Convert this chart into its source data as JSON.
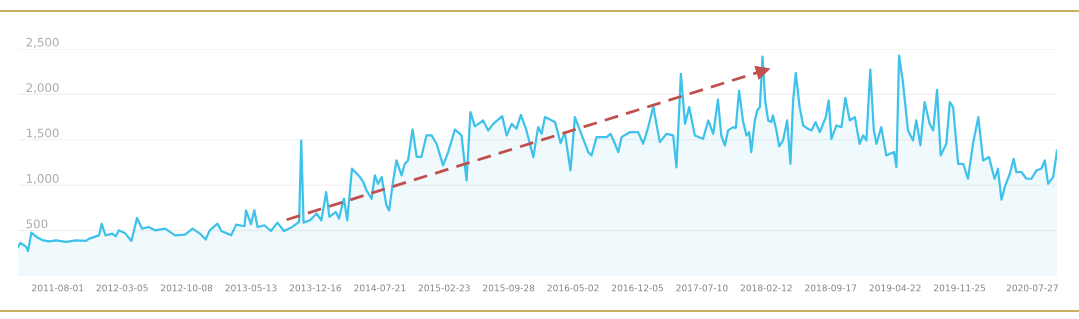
{
  "chart_data": {
    "type": "area",
    "xlim": [
      "2011-03-20",
      "2020-10-18"
    ],
    "ylim": [
      0,
      2500
    ],
    "xticks": [
      "2011-08-01",
      "2012-03-05",
      "2012-10-08",
      "2013-05-13",
      "2013-12-16",
      "2014-07-21",
      "2015-02-23",
      "2015-09-28",
      "2016-05-02",
      "2016-12-05",
      "2017-07-10",
      "2018-02-12",
      "2018-09-17",
      "2019-04-22",
      "2019-11-25",
      "2020-07-27"
    ],
    "yticks": [
      {
        "value": 500,
        "label": "500"
      },
      {
        "value": 1000,
        "label": "1,000"
      },
      {
        "value": 1500,
        "label": "1,500"
      },
      {
        "value": 2000,
        "label": "2,000"
      },
      {
        "value": 2500,
        "label": "2,500"
      }
    ],
    "grid": "y",
    "legend": false,
    "series": [
      {
        "color": "#3ec1ea",
        "x": [
          "2011-03-20",
          "2011-03-28",
          "2011-04-17",
          "2011-04-23",
          "2011-05-04",
          "2011-05-21",
          "2011-06-12",
          "2011-07-04",
          "2011-07-26",
          "2011-08-29",
          "2011-10-01",
          "2011-11-04",
          "2011-11-15",
          "2011-12-18",
          "2011-12-27",
          "2012-01-09",
          "2012-02-01",
          "2012-02-12",
          "2012-02-23",
          "2012-03-16",
          "2012-04-05",
          "2012-04-24",
          "2012-05-11",
          "2012-06-02",
          "2012-06-24",
          "2012-07-28",
          "2012-08-30",
          "2012-10-03",
          "2012-10-28",
          "2012-11-22",
          "2012-12-11",
          "2012-12-25",
          "2013-01-20",
          "2013-02-02",
          "2013-03-07",
          "2013-03-24",
          "2013-04-21",
          "2013-04-26",
          "2013-05-13",
          "2013-05-24",
          "2013-06-04",
          "2013-06-27",
          "2013-07-19",
          "2013-08-10",
          "2013-09-01",
          "2013-09-29",
          "2013-10-22",
          "2013-10-29",
          "2013-11-06",
          "2013-11-28",
          "2013-12-20",
          "2014-01-05",
          "2014-01-21",
          "2014-02-01",
          "2014-02-23",
          "2014-03-05",
          "2014-03-22",
          "2014-04-02",
          "2014-04-18",
          "2014-05-15",
          "2014-05-26",
          "2014-06-06",
          "2014-06-23",
          "2014-07-04",
          "2014-07-15",
          "2014-07-27",
          "2014-08-12",
          "2014-08-21",
          "2014-09-04",
          "2014-09-15",
          "2014-10-02",
          "2014-10-13",
          "2014-10-24",
          "2014-11-08",
          "2014-11-22",
          "2014-12-08",
          "2014-12-25",
          "2015-01-11",
          "2015-01-28",
          "2015-02-19",
          "2015-03-08",
          "2015-03-31",
          "2015-04-22",
          "2015-05-09",
          "2015-05-22",
          "2015-06-06",
          "2015-07-04",
          "2015-07-21",
          "2015-08-07",
          "2015-09-06",
          "2015-09-21",
          "2015-10-08",
          "2015-10-24",
          "2015-11-08",
          "2015-11-27",
          "2015-12-20",
          "2016-01-05",
          "2016-01-17",
          "2016-01-28",
          "2016-03-02",
          "2016-03-21",
          "2016-04-04",
          "2016-04-23",
          "2016-05-08",
          "2016-05-25",
          "2016-06-22",
          "2016-07-03",
          "2016-07-20",
          "2016-08-23",
          "2016-09-05",
          "2016-09-20",
          "2016-10-01",
          "2016-10-12",
          "2016-11-09",
          "2016-12-07",
          "2016-12-24",
          "2017-01-10",
          "2017-01-27",
          "2017-02-18",
          "2017-03-13",
          "2017-04-04",
          "2017-04-15",
          "2017-04-30",
          "2017-05-14",
          "2017-05-28",
          "2017-06-16",
          "2017-07-14",
          "2017-07-31",
          "2017-08-17",
          "2017-09-02",
          "2017-09-13",
          "2017-09-25",
          "2017-10-06",
          "2017-10-23",
          "2017-11-01",
          "2017-11-12",
          "2017-11-25",
          "2017-12-07",
          "2017-12-16",
          "2017-12-23",
          "2018-01-04",
          "2018-01-12",
          "2018-01-21",
          "2018-01-30",
          "2018-02-08",
          "2018-02-18",
          "2018-03-01",
          "2018-03-06",
          "2018-03-18",
          "2018-03-27",
          "2018-04-09",
          "2018-04-23",
          "2018-05-04",
          "2018-05-13",
          "2018-05-22",
          "2018-06-04",
          "2018-06-16",
          "2018-07-02",
          "2018-07-14",
          "2018-07-28",
          "2018-08-11",
          "2018-08-31",
          "2018-09-10",
          "2018-09-19",
          "2018-10-06",
          "2018-10-23",
          "2018-11-05",
          "2018-11-20",
          "2018-12-07",
          "2018-12-23",
          "2019-01-04",
          "2019-01-15",
          "2019-01-28",
          "2019-02-09",
          "2019-02-18",
          "2019-03-06",
          "2019-03-23",
          "2019-04-18",
          "2019-04-26",
          "2019-05-05",
          "2019-05-18",
          "2019-06-04",
          "2019-06-21",
          "2019-07-02",
          "2019-07-16",
          "2019-07-30",
          "2019-08-16",
          "2019-08-28",
          "2019-09-10",
          "2019-09-22",
          "2019-10-11",
          "2019-10-23",
          "2019-11-03",
          "2019-11-20",
          "2019-12-07",
          "2019-12-23",
          "2020-01-09",
          "2020-01-27",
          "2020-02-12",
          "2020-03-03",
          "2020-03-17",
          "2020-03-22",
          "2020-04-02",
          "2020-04-14",
          "2020-04-25",
          "2020-05-12",
          "2020-05-25",
          "2020-06-03",
          "2020-06-20",
          "2020-07-07",
          "2020-07-24",
          "2020-08-10",
          "2020-08-26",
          "2020-09-07",
          "2020-09-18",
          "2020-10-05",
          "2020-10-18"
        ],
        "values": [
          320,
          363,
          320,
          275,
          478,
          430,
          393,
          382,
          393,
          375,
          393,
          386,
          412,
          448,
          575,
          448,
          467,
          437,
          503,
          467,
          386,
          639,
          522,
          540,
          503,
          522,
          448,
          456,
          522,
          467,
          401,
          503,
          577,
          496,
          448,
          566,
          548,
          724,
          570,
          724,
          540,
          559,
          496,
          588,
          496,
          540,
          595,
          1490,
          588,
          614,
          688,
          614,
          923,
          651,
          706,
          632,
          853,
          614,
          1184,
          1090,
          1035,
          943,
          851,
          1108,
          1016,
          1090,
          778,
          722,
          1053,
          1273,
          1108,
          1236,
          1273,
          1614,
          1313,
          1313,
          1548,
          1548,
          1456,
          1218,
          1364,
          1614,
          1548,
          1053,
          1805,
          1647,
          1713,
          1603,
          1676,
          1761,
          1548,
          1676,
          1621,
          1775,
          1603,
          1309,
          1640,
          1566,
          1750,
          1695,
          1463,
          1584,
          1163,
          1750,
          1603,
          1364,
          1327,
          1529,
          1529,
          1566,
          1456,
          1364,
          1529,
          1584,
          1584,
          1456,
          1640,
          1867,
          1474,
          1566,
          1548,
          1195,
          2226,
          1676,
          1860,
          1548,
          1511,
          1713,
          1566,
          1944,
          1548,
          1438,
          1603,
          1640,
          1632,
          2043,
          1713,
          1548,
          1585,
          1365,
          1713,
          1823,
          1860,
          2417,
          1933,
          1713,
          1695,
          1768,
          1603,
          1427,
          1493,
          1713,
          1236,
          1933,
          2234,
          1860,
          1658,
          1621,
          1603,
          1695,
          1585,
          1750,
          1933,
          1511,
          1658,
          1640,
          1962,
          1713,
          1750,
          1456,
          1548,
          1493,
          2274,
          1603,
          1456,
          1640,
          1328,
          1365,
          1199,
          2428,
          2135,
          1603,
          1493,
          1713,
          1438,
          1915,
          1676,
          1603,
          2050,
          1328,
          1456,
          1915,
          1860,
          1236,
          1236,
          1071,
          1456,
          1750,
          1273,
          1310,
          1126,
          1071,
          1181,
          840,
          979,
          1126,
          1291,
          1145,
          1145,
          1071,
          1071,
          1163,
          1181,
          1273,
          1016,
          1089,
          1383
        ]
      },
      {
        "type": "line",
        "color": "#c0504d",
        "line_style": "dashed",
        "x": [
          "2013-09-10",
          "2018-02-01"
        ],
        "values": [
          620,
          2260
        ]
      }
    ]
  }
}
